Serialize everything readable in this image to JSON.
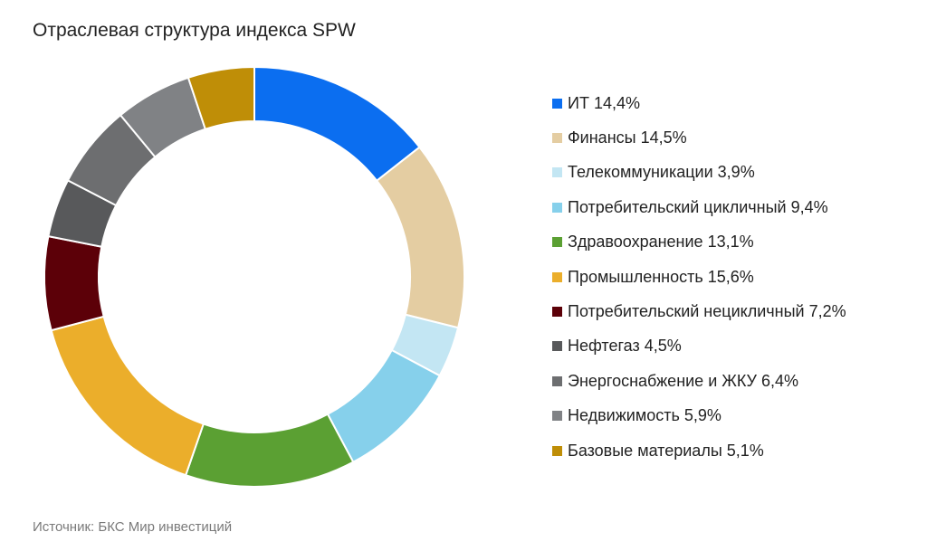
{
  "title": "Отраслевая структура индекса SPW",
  "source": "Источник: БКС Мир инвестиций",
  "chart_data": {
    "type": "pie",
    "donut": true,
    "legend_position": "right",
    "series": [
      {
        "name": "ИТ",
        "value": 14.4,
        "label": "14,4%",
        "color": "#0B6EF0"
      },
      {
        "name": "Финансы",
        "value": 14.5,
        "label": "14,5%",
        "color": "#E4CDA2"
      },
      {
        "name": "Телекоммуникации",
        "value": 3.9,
        "label": "3,9%",
        "color": "#C3E6F3"
      },
      {
        "name": "Потребительский цикличный",
        "value": 9.4,
        "label": "9,4%",
        "color": "#86D0EB"
      },
      {
        "name": "Здравоохранение",
        "value": 13.1,
        "label": "13,1%",
        "color": "#5BA033"
      },
      {
        "name": "Промышленность",
        "value": 15.6,
        "label": "15,6%",
        "color": "#EBAE2B"
      },
      {
        "name": "Потребительский нецикличный",
        "value": 7.2,
        "label": "7,2%",
        "color": "#5C0008"
      },
      {
        "name": "Нефтегаз",
        "value": 4.5,
        "label": "4,5%",
        "color": "#58595B"
      },
      {
        "name": "Энергоснабжение и ЖКУ",
        "value": 6.4,
        "label": "6,4%",
        "color": "#6D6E70"
      },
      {
        "name": "Недвижимость",
        "value": 5.9,
        "label": "5,9%",
        "color": "#808285"
      },
      {
        "name": "Базовые материалы",
        "value": 5.1,
        "label": "5,1%",
        "color": "#BF8E07"
      }
    ]
  }
}
